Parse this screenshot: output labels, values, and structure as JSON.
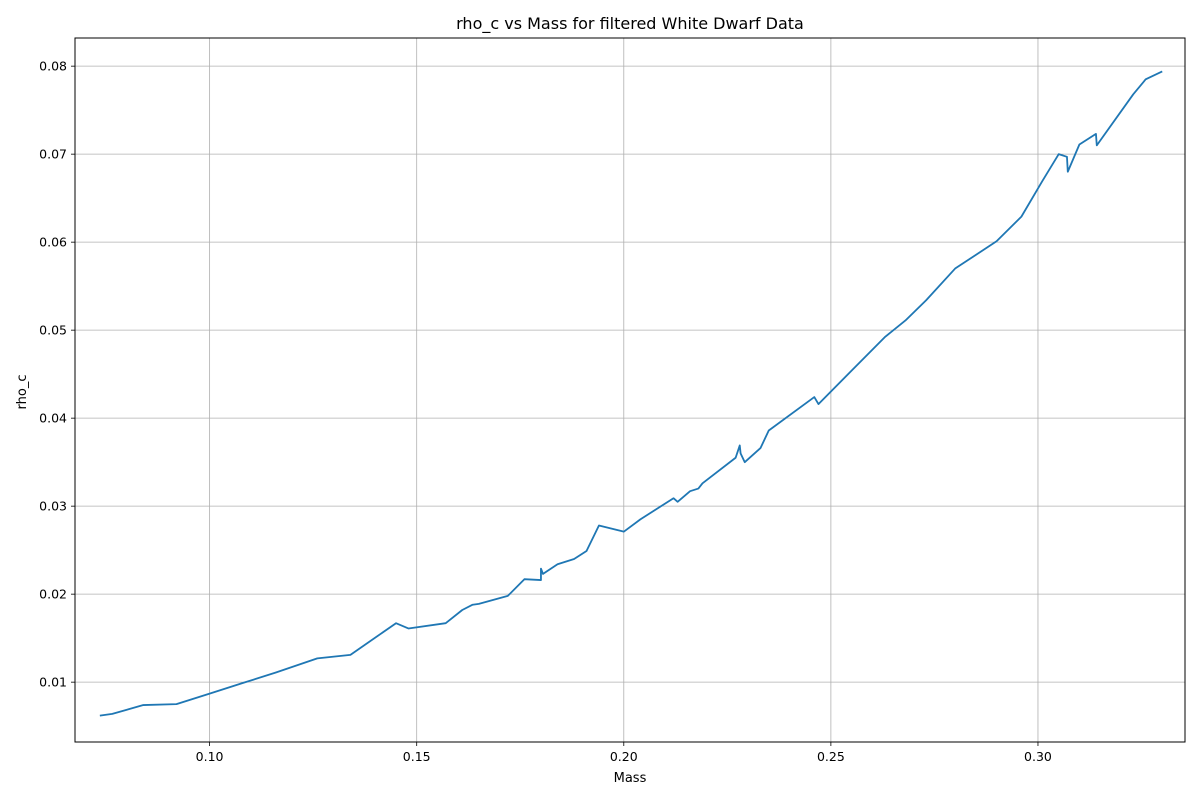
{
  "chart_data": {
    "type": "line",
    "title": "rho_c vs Mass for filtered White Dwarf Data",
    "xlabel": "Mass",
    "ylabel": "rho_c",
    "xlim": [
      0.0675,
      0.3355
    ],
    "ylim": [
      0.0032,
      0.0832
    ],
    "xticks": [
      0.1,
      0.15,
      0.2,
      0.25,
      0.3
    ],
    "xtick_labels": [
      "0.10",
      "0.15",
      "0.20",
      "0.25",
      "0.30"
    ],
    "yticks": [
      0.01,
      0.02,
      0.03,
      0.04,
      0.05,
      0.06,
      0.07,
      0.08
    ],
    "ytick_labels": [
      "0.01",
      "0.02",
      "0.03",
      "0.04",
      "0.05",
      "0.06",
      "0.07",
      "0.08"
    ],
    "grid": true,
    "color": "#1f77b4",
    "series": [
      {
        "x": [
          0.0735,
          0.0765,
          0.084,
          0.092,
          0.1,
          0.108,
          0.116,
          0.126,
          0.134,
          0.145,
          0.148,
          0.157,
          0.161,
          0.1635,
          0.165,
          0.172,
          0.176,
          0.18,
          0.18,
          0.1805,
          0.184,
          0.188,
          0.191,
          0.194,
          0.2,
          0.204,
          0.212,
          0.213,
          0.216,
          0.218,
          0.219,
          0.227,
          0.228,
          0.2282,
          0.2292,
          0.233,
          0.235,
          0.246,
          0.247,
          0.255,
          0.263,
          0.268,
          0.273,
          0.28,
          0.29,
          0.296,
          0.301,
          0.305,
          0.307,
          0.3072,
          0.31,
          0.314,
          0.3142,
          0.323,
          0.326,
          0.33
        ],
        "y": [
          0.0062,
          0.0064,
          0.0074,
          0.0075,
          0.0087,
          0.0099,
          0.0111,
          0.0127,
          0.0131,
          0.0167,
          0.0161,
          0.0167,
          0.0182,
          0.0188,
          0.0189,
          0.0198,
          0.0217,
          0.0216,
          0.0229,
          0.0223,
          0.0234,
          0.024,
          0.0249,
          0.0278,
          0.0271,
          0.0285,
          0.0309,
          0.0305,
          0.0317,
          0.032,
          0.0326,
          0.0355,
          0.0369,
          0.036,
          0.035,
          0.0366,
          0.0386,
          0.0424,
          0.0416,
          0.0454,
          0.0492,
          0.0511,
          0.0534,
          0.057,
          0.0601,
          0.0629,
          0.0669,
          0.07,
          0.0697,
          0.068,
          0.0711,
          0.0723,
          0.071,
          0.0768,
          0.0785,
          0.0794
        ]
      }
    ]
  }
}
